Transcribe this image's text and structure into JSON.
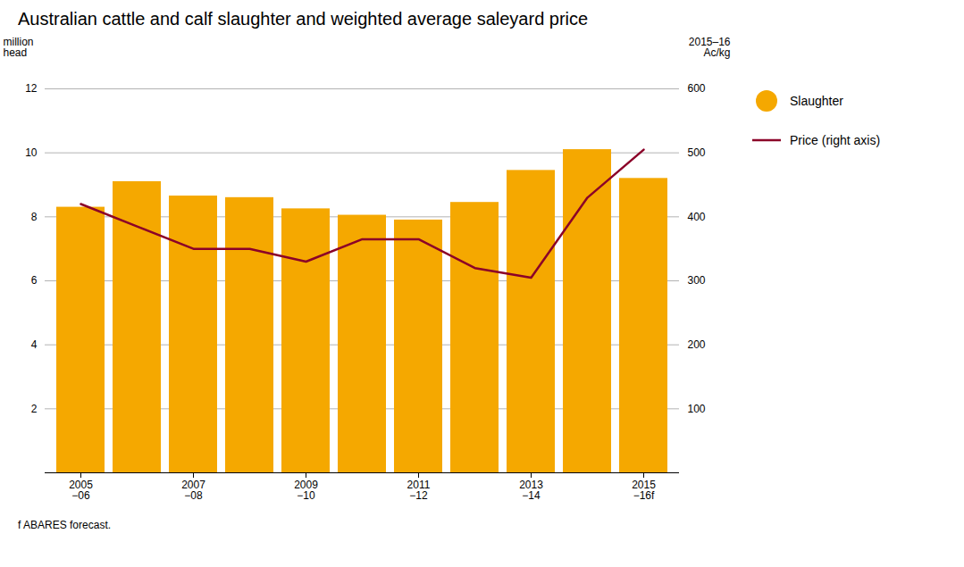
{
  "chart_data": {
    "type": "bar",
    "title": "Australian cattle and calf slaughter and weighted average saleyard price",
    "footnote": "f ABARES forecast.",
    "categories": [
      "2005\n−06",
      null,
      "2007\n−08",
      null,
      "2009\n−10",
      null,
      "2011\n−12",
      null,
      "2013\n−14",
      null,
      "2015\n−16f"
    ],
    "series": [
      {
        "name": "Slaughter",
        "type": "bar",
        "color": "#F5A800",
        "values": [
          8.3,
          9.1,
          8.65,
          8.6,
          8.25,
          8.05,
          7.9,
          8.45,
          9.45,
          10.1,
          9.2
        ]
      },
      {
        "name": "Price (right axis)",
        "type": "line",
        "color": "#8B0028",
        "axis": "y2",
        "values": [
          420,
          385,
          350,
          350,
          330,
          365,
          365,
          320,
          305,
          430,
          505
        ]
      }
    ],
    "ylabel": "million\nhead",
    "y2label": "2015–16\nAc/kg",
    "ylim": [
      0,
      12
    ],
    "yticks": [
      2,
      4,
      6,
      8,
      10,
      12
    ],
    "y2lim": [
      0,
      600
    ],
    "y2ticks": [
      100,
      200,
      300,
      400,
      500,
      600
    ],
    "grid": true,
    "legend": "upper right"
  }
}
